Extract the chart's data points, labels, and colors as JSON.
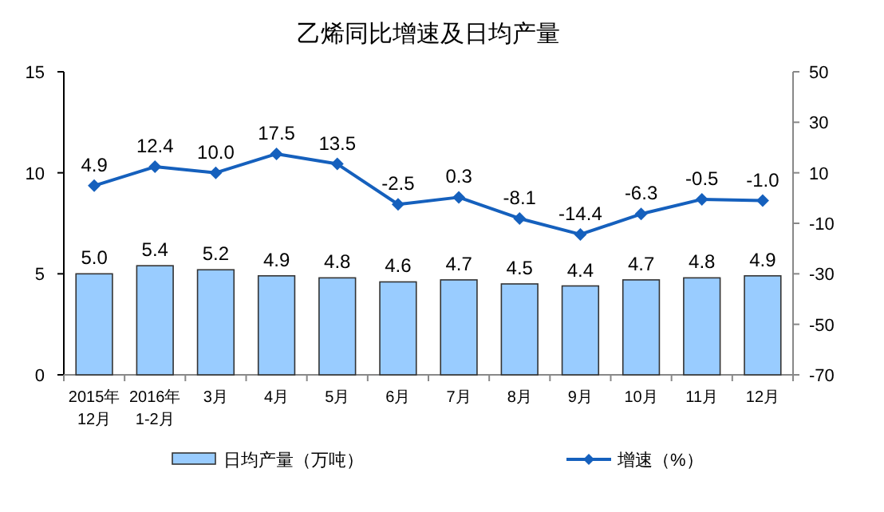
{
  "chart_data": {
    "type": "bar",
    "title": "乙烯同比增速及日均产量",
    "categories": [
      "2015年\n12月",
      "2016年\n1-2月",
      "3月",
      "4月",
      "5月",
      "6月",
      "7月",
      "8月",
      "9月",
      "10月",
      "11月",
      "12月"
    ],
    "series": [
      {
        "name": "日均产量（万吨）",
        "color": "#99ccff",
        "values": [
          5.0,
          5.4,
          5.2,
          4.9,
          4.8,
          4.6,
          4.7,
          4.5,
          4.4,
          4.7,
          4.8,
          4.9
        ],
        "value_labels": [
          "5.0",
          "5.4",
          "5.2",
          "4.9",
          "4.8",
          "4.6",
          "4.7",
          "4.5",
          "4.4",
          "4.7",
          "4.8",
          "4.9"
        ]
      },
      {
        "name": "增速（%）",
        "type": "line",
        "axis": "y2",
        "color": "#1560bd",
        "marker": "diamond",
        "values": [
          4.9,
          12.4,
          10.0,
          17.5,
          13.5,
          -2.5,
          0.3,
          -8.1,
          -14.4,
          -6.3,
          -0.5,
          -1.0
        ],
        "value_labels": [
          "4.9",
          "12.4",
          "10.0",
          "17.5",
          "13.5",
          "-2.5",
          "0.3",
          "-8.1",
          "-14.4",
          "-6.3",
          "-0.5",
          "-1.0"
        ]
      }
    ],
    "ylim": [
      0,
      15
    ],
    "yticks": [
      0,
      5,
      10,
      15
    ],
    "y2lim": [
      -70,
      50
    ],
    "y2ticks": [
      -70,
      -50,
      -30,
      -10,
      10,
      30,
      50
    ],
    "grid": false,
    "legend": "bottom"
  }
}
